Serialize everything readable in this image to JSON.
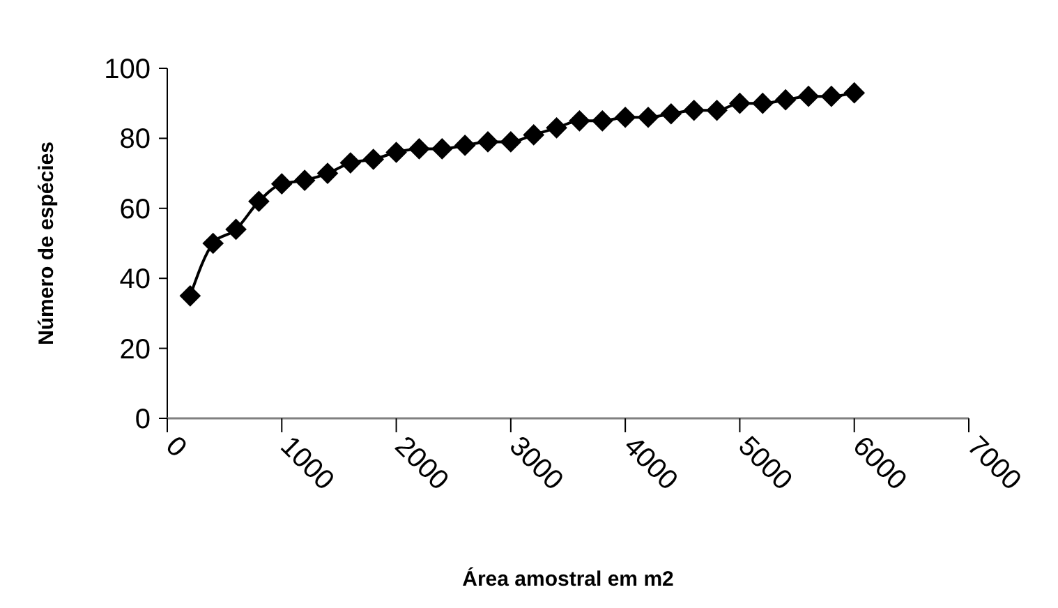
{
  "chart_data": {
    "type": "line",
    "xlabel": "Área amostral em m2",
    "ylabel": "Número de espécies",
    "x": [
      200,
      400,
      600,
      800,
      1000,
      1200,
      1400,
      1600,
      1800,
      2000,
      2200,
      2400,
      2600,
      2800,
      3000,
      3200,
      3400,
      3600,
      3800,
      4000,
      4200,
      4400,
      4600,
      4800,
      5000,
      5200,
      5400,
      5600,
      5800,
      6000
    ],
    "series": [
      {
        "color": "#000000",
        "values": [
          35,
          50,
          54,
          62,
          67,
          68,
          70,
          73,
          74,
          76,
          77,
          77,
          78,
          79,
          79,
          81,
          83,
          85,
          85,
          86,
          86,
          87,
          88,
          88,
          90,
          90,
          91,
          92,
          92,
          93
        ]
      }
    ],
    "xlim": [
      0,
      7000
    ],
    "xticks": [
      0,
      1000,
      2000,
      3000,
      4000,
      5000,
      6000,
      7000
    ],
    "ylim": [
      0,
      100
    ],
    "yticks": [
      0,
      20,
      40,
      60,
      80,
      100
    ],
    "marker": "diamond",
    "line_style": "solid"
  }
}
